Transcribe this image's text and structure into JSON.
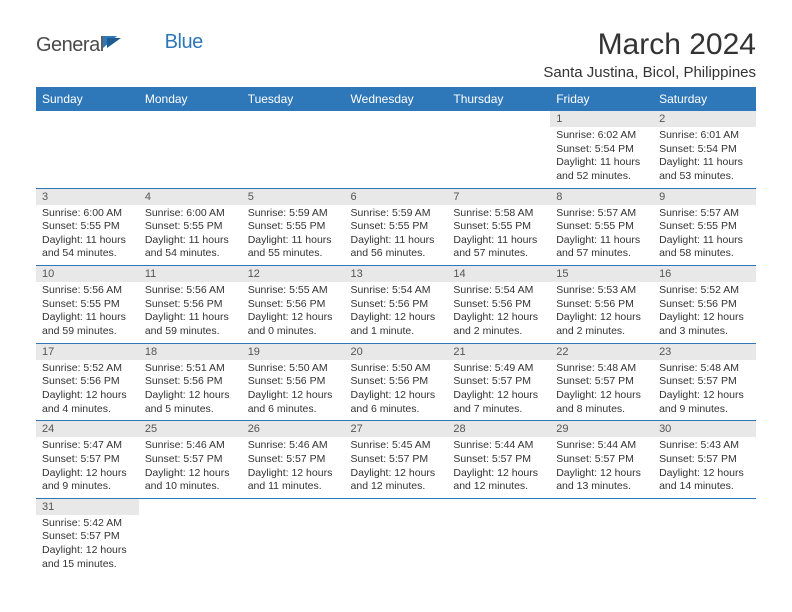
{
  "logo": {
    "textGeneral": "General",
    "textBlue": "Blue"
  },
  "title": "March 2024",
  "location": "Santa Justina, Bicol, Philippines",
  "headerColor": "#2e77b8",
  "dayNumBg": "#e8e8e8",
  "weekdays": [
    "Sunday",
    "Monday",
    "Tuesday",
    "Wednesday",
    "Thursday",
    "Friday",
    "Saturday"
  ],
  "weeks": [
    [
      null,
      null,
      null,
      null,
      null,
      {
        "n": "1",
        "sunrise": "6:02 AM",
        "sunset": "5:54 PM",
        "daylight": "11 hours and 52 minutes."
      },
      {
        "n": "2",
        "sunrise": "6:01 AM",
        "sunset": "5:54 PM",
        "daylight": "11 hours and 53 minutes."
      }
    ],
    [
      {
        "n": "3",
        "sunrise": "6:00 AM",
        "sunset": "5:55 PM",
        "daylight": "11 hours and 54 minutes."
      },
      {
        "n": "4",
        "sunrise": "6:00 AM",
        "sunset": "5:55 PM",
        "daylight": "11 hours and 54 minutes."
      },
      {
        "n": "5",
        "sunrise": "5:59 AM",
        "sunset": "5:55 PM",
        "daylight": "11 hours and 55 minutes."
      },
      {
        "n": "6",
        "sunrise": "5:59 AM",
        "sunset": "5:55 PM",
        "daylight": "11 hours and 56 minutes."
      },
      {
        "n": "7",
        "sunrise": "5:58 AM",
        "sunset": "5:55 PM",
        "daylight": "11 hours and 57 minutes."
      },
      {
        "n": "8",
        "sunrise": "5:57 AM",
        "sunset": "5:55 PM",
        "daylight": "11 hours and 57 minutes."
      },
      {
        "n": "9",
        "sunrise": "5:57 AM",
        "sunset": "5:55 PM",
        "daylight": "11 hours and 58 minutes."
      }
    ],
    [
      {
        "n": "10",
        "sunrise": "5:56 AM",
        "sunset": "5:55 PM",
        "daylight": "11 hours and 59 minutes."
      },
      {
        "n": "11",
        "sunrise": "5:56 AM",
        "sunset": "5:56 PM",
        "daylight": "11 hours and 59 minutes."
      },
      {
        "n": "12",
        "sunrise": "5:55 AM",
        "sunset": "5:56 PM",
        "daylight": "12 hours and 0 minutes."
      },
      {
        "n": "13",
        "sunrise": "5:54 AM",
        "sunset": "5:56 PM",
        "daylight": "12 hours and 1 minute."
      },
      {
        "n": "14",
        "sunrise": "5:54 AM",
        "sunset": "5:56 PM",
        "daylight": "12 hours and 2 minutes."
      },
      {
        "n": "15",
        "sunrise": "5:53 AM",
        "sunset": "5:56 PM",
        "daylight": "12 hours and 2 minutes."
      },
      {
        "n": "16",
        "sunrise": "5:52 AM",
        "sunset": "5:56 PM",
        "daylight": "12 hours and 3 minutes."
      }
    ],
    [
      {
        "n": "17",
        "sunrise": "5:52 AM",
        "sunset": "5:56 PM",
        "daylight": "12 hours and 4 minutes."
      },
      {
        "n": "18",
        "sunrise": "5:51 AM",
        "sunset": "5:56 PM",
        "daylight": "12 hours and 5 minutes."
      },
      {
        "n": "19",
        "sunrise": "5:50 AM",
        "sunset": "5:56 PM",
        "daylight": "12 hours and 6 minutes."
      },
      {
        "n": "20",
        "sunrise": "5:50 AM",
        "sunset": "5:56 PM",
        "daylight": "12 hours and 6 minutes."
      },
      {
        "n": "21",
        "sunrise": "5:49 AM",
        "sunset": "5:57 PM",
        "daylight": "12 hours and 7 minutes."
      },
      {
        "n": "22",
        "sunrise": "5:48 AM",
        "sunset": "5:57 PM",
        "daylight": "12 hours and 8 minutes."
      },
      {
        "n": "23",
        "sunrise": "5:48 AM",
        "sunset": "5:57 PM",
        "daylight": "12 hours and 9 minutes."
      }
    ],
    [
      {
        "n": "24",
        "sunrise": "5:47 AM",
        "sunset": "5:57 PM",
        "daylight": "12 hours and 9 minutes."
      },
      {
        "n": "25",
        "sunrise": "5:46 AM",
        "sunset": "5:57 PM",
        "daylight": "12 hours and 10 minutes."
      },
      {
        "n": "26",
        "sunrise": "5:46 AM",
        "sunset": "5:57 PM",
        "daylight": "12 hours and 11 minutes."
      },
      {
        "n": "27",
        "sunrise": "5:45 AM",
        "sunset": "5:57 PM",
        "daylight": "12 hours and 12 minutes."
      },
      {
        "n": "28",
        "sunrise": "5:44 AM",
        "sunset": "5:57 PM",
        "daylight": "12 hours and 12 minutes."
      },
      {
        "n": "29",
        "sunrise": "5:44 AM",
        "sunset": "5:57 PM",
        "daylight": "12 hours and 13 minutes."
      },
      {
        "n": "30",
        "sunrise": "5:43 AM",
        "sunset": "5:57 PM",
        "daylight": "12 hours and 14 minutes."
      }
    ],
    [
      {
        "n": "31",
        "sunrise": "5:42 AM",
        "sunset": "5:57 PM",
        "daylight": "12 hours and 15 minutes."
      },
      null,
      null,
      null,
      null,
      null,
      null
    ]
  ],
  "labels": {
    "sunrise": "Sunrise:",
    "sunset": "Sunset:",
    "daylight": "Daylight:"
  }
}
